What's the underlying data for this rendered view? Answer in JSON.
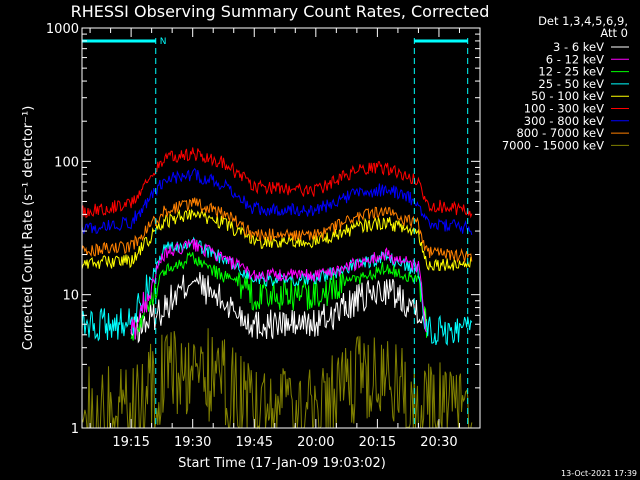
{
  "chart_data": {
    "type": "line",
    "title": "RHESSI Observing Summary Count Rates, Corrected",
    "xlabel": "Start Time (17-Jan-09 19:03:02)",
    "ylabel": "Corrected Count Rate (s⁻¹ detector⁻¹)",
    "yscale": "log",
    "ylim": [
      1,
      1000
    ],
    "y_ticks": [
      "1",
      "10",
      "100",
      "1000"
    ],
    "x_ticks": [
      "19:15",
      "19:30",
      "19:45",
      "20:00",
      "20:15",
      "20:30"
    ],
    "xlim": [
      "19:03:02",
      "20:40:00"
    ],
    "legend_header": [
      "Det 1,3,4,5,6,9,",
      "Att 0"
    ],
    "legend_position": "top-right outside",
    "series": [
      {
        "name": "3 - 6 keV",
        "color": "#ffffff",
        "points": [
          [
            "19:15",
            5
          ],
          [
            "19:23",
            8
          ],
          [
            "19:30",
            13
          ],
          [
            "19:37",
            9
          ],
          [
            "19:45",
            6
          ],
          [
            "20:00",
            6
          ],
          [
            "20:10",
            9
          ],
          [
            "20:17",
            11
          ],
          [
            "20:25",
            8
          ],
          [
            "20:27",
            6
          ]
        ]
      },
      {
        "name": "6 - 12 keV",
        "color": "#ff00ff",
        "points": [
          [
            "19:15",
            5
          ],
          [
            "19:23",
            20
          ],
          [
            "19:30",
            24
          ],
          [
            "19:37",
            19
          ],
          [
            "19:45",
            14
          ],
          [
            "20:00",
            14
          ],
          [
            "20:10",
            17
          ],
          [
            "20:17",
            20
          ],
          [
            "20:25",
            16
          ],
          [
            "20:27",
            6
          ]
        ]
      },
      {
        "name": "12 - 25 keV",
        "color": "#00ff00",
        "points": [
          [
            "19:15",
            5
          ],
          [
            "19:23",
            15
          ],
          [
            "19:30",
            19
          ],
          [
            "19:37",
            14
          ],
          [
            "19:45",
            10
          ],
          [
            "20:00",
            10
          ],
          [
            "20:10",
            13
          ],
          [
            "20:17",
            16
          ],
          [
            "20:25",
            13
          ],
          [
            "20:27",
            6
          ]
        ]
      },
      {
        "name": "25 - 50 keV",
        "color": "#00ffff",
        "points": [
          [
            "19:03",
            6
          ],
          [
            "19:15",
            6
          ],
          [
            "19:23",
            22
          ],
          [
            "19:30",
            24
          ],
          [
            "19:37",
            19
          ],
          [
            "19:45",
            13
          ],
          [
            "20:00",
            13
          ],
          [
            "20:10",
            17
          ],
          [
            "20:17",
            19
          ],
          [
            "20:25",
            15
          ],
          [
            "20:27",
            5.5
          ],
          [
            "20:38",
            5.5
          ]
        ]
      },
      {
        "name": "50 - 100 keV",
        "color": "#ffff00",
        "points": [
          [
            "19:03",
            17
          ],
          [
            "19:15",
            18
          ],
          [
            "19:23",
            35
          ],
          [
            "19:30",
            41
          ],
          [
            "19:37",
            35
          ],
          [
            "19:45",
            25
          ],
          [
            "20:00",
            25
          ],
          [
            "20:10",
            32
          ],
          [
            "20:17",
            35
          ],
          [
            "20:25",
            29
          ],
          [
            "20:27",
            17
          ],
          [
            "20:38",
            17
          ]
        ]
      },
      {
        "name": "100 - 300 keV",
        "color": "#ff0000",
        "points": [
          [
            "19:03",
            42
          ],
          [
            "19:15",
            48
          ],
          [
            "19:23",
            105
          ],
          [
            "19:30",
            115
          ],
          [
            "19:37",
            100
          ],
          [
            "19:45",
            65
          ],
          [
            "20:00",
            60
          ],
          [
            "20:10",
            85
          ],
          [
            "20:17",
            90
          ],
          [
            "20:25",
            70
          ],
          [
            "20:27",
            48
          ],
          [
            "20:38",
            42
          ]
        ]
      },
      {
        "name": "300 - 800 keV",
        "color": "#0000ff",
        "points": [
          [
            "19:03",
            31
          ],
          [
            "19:15",
            35
          ],
          [
            "19:23",
            72
          ],
          [
            "19:30",
            80
          ],
          [
            "19:37",
            68
          ],
          [
            "19:45",
            44
          ],
          [
            "20:00",
            43
          ],
          [
            "20:10",
            58
          ],
          [
            "20:17",
            62
          ],
          [
            "20:25",
            50
          ],
          [
            "20:27",
            35
          ],
          [
            "20:38",
            31
          ]
        ]
      },
      {
        "name": "800 - 7000 keV",
        "color": "#ff8000",
        "points": [
          [
            "19:03",
            21
          ],
          [
            "19:15",
            23
          ],
          [
            "19:23",
            42
          ],
          [
            "19:30",
            49
          ],
          [
            "19:37",
            42
          ],
          [
            "19:45",
            28
          ],
          [
            "20:00",
            28
          ],
          [
            "20:10",
            38
          ],
          [
            "20:17",
            42
          ],
          [
            "20:25",
            33
          ],
          [
            "20:27",
            21
          ],
          [
            "20:38",
            19
          ]
        ]
      },
      {
        "name": "7000 - 15000 keV",
        "color": "#808000",
        "points": [
          [
            "19:03",
            1.3
          ],
          [
            "19:15",
            1.3
          ],
          [
            "19:23",
            2.5
          ],
          [
            "19:30",
            2.8
          ],
          [
            "19:37",
            2.3
          ],
          [
            "19:45",
            1.3
          ],
          [
            "20:00",
            1.3
          ],
          [
            "20:10",
            2.3
          ],
          [
            "20:17",
            2.3
          ],
          [
            "20:25",
            1.6
          ],
          [
            "20:38",
            1.2
          ]
        ]
      }
    ],
    "annotations": {
      "flag_label": "N",
      "vertical_markers": [
        "19:21",
        "20:24",
        "20:37"
      ]
    },
    "footer": "13-Oct-2021 17:39"
  }
}
